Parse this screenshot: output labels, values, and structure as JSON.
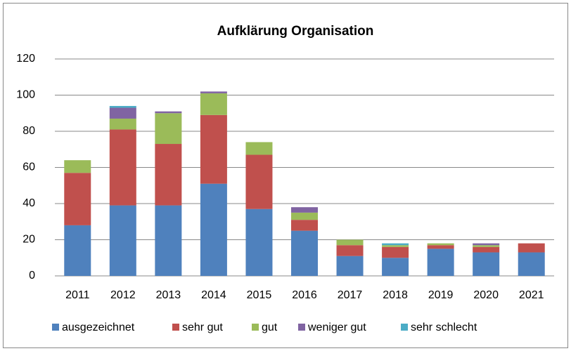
{
  "chart_data": {
    "type": "stacked_bar",
    "title": "Aufklärung Organisation",
    "categories": [
      "2011",
      "2012",
      "2013",
      "2014",
      "2015",
      "2016",
      "2017",
      "2018",
      "2019",
      "2020",
      "2021"
    ],
    "series": [
      {
        "name": "ausgezeichnet",
        "color": "#4f81bd",
        "values": [
          28,
          39,
          39,
          51,
          37,
          25,
          11,
          10,
          15,
          13,
          13
        ]
      },
      {
        "name": "sehr gut",
        "color": "#c0504d",
        "values": [
          29,
          42,
          34,
          38,
          30,
          6,
          6,
          6,
          2,
          3,
          5
        ]
      },
      {
        "name": "gut",
        "color": "#9bbb59",
        "values": [
          7,
          6,
          17,
          12,
          7,
          4,
          3,
          1,
          1,
          1,
          0
        ]
      },
      {
        "name": "weniger gut",
        "color": "#8064a2",
        "values": [
          0,
          6,
          1,
          1,
          0,
          3,
          0,
          0,
          0,
          1,
          0
        ]
      },
      {
        "name": "sehr schlecht",
        "color": "#4bacc6",
        "values": [
          0,
          1,
          0,
          0,
          0,
          0,
          0,
          1,
          0,
          0,
          0
        ]
      }
    ],
    "ylim": [
      0,
      120
    ],
    "yticks": [
      0,
      20,
      40,
      60,
      80,
      100,
      120
    ],
    "grid": true,
    "legend": "bottom"
  }
}
